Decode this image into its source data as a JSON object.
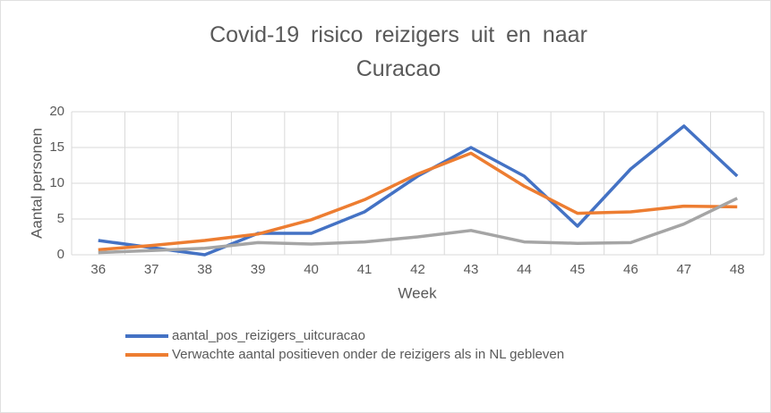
{
  "chart_data": {
    "type": "line",
    "title": "Covid-19 risico reizigers uit en naar Curacao",
    "x_label": "Week",
    "y_label": "Aantal personen",
    "categories": [
      "36",
      "37",
      "38",
      "39",
      "40",
      "41",
      "42",
      "43",
      "44",
      "45",
      "46",
      "47",
      "48"
    ],
    "series": [
      {
        "name": "aantal_pos_reizigers_uitcuracao",
        "color": "#4472c4",
        "values": [
          2,
          1,
          0,
          3,
          3,
          6,
          11,
          15,
          11,
          4,
          12,
          18,
          11
        ]
      },
      {
        "name": "Verwachte aantal positieven onder de reizigers als in NL gebleven",
        "color": "#ed7d31",
        "values": [
          0.7,
          1.3,
          2,
          2.9,
          4.9,
          7.7,
          11.3,
          14.2,
          9.6,
          5.8,
          6,
          6.8,
          6.7
        ]
      },
      {
        "color": "#a5a5a5",
        "values": [
          0.3,
          0.6,
          0.9,
          1.7,
          1.5,
          1.8,
          2.5,
          3.4,
          1.8,
          1.6,
          1.7,
          4.3,
          7.9
        ]
      }
    ],
    "ylim": [
      0,
      20
    ],
    "yticks": [
      0,
      5,
      10,
      15,
      20
    ],
    "grid": true
  }
}
